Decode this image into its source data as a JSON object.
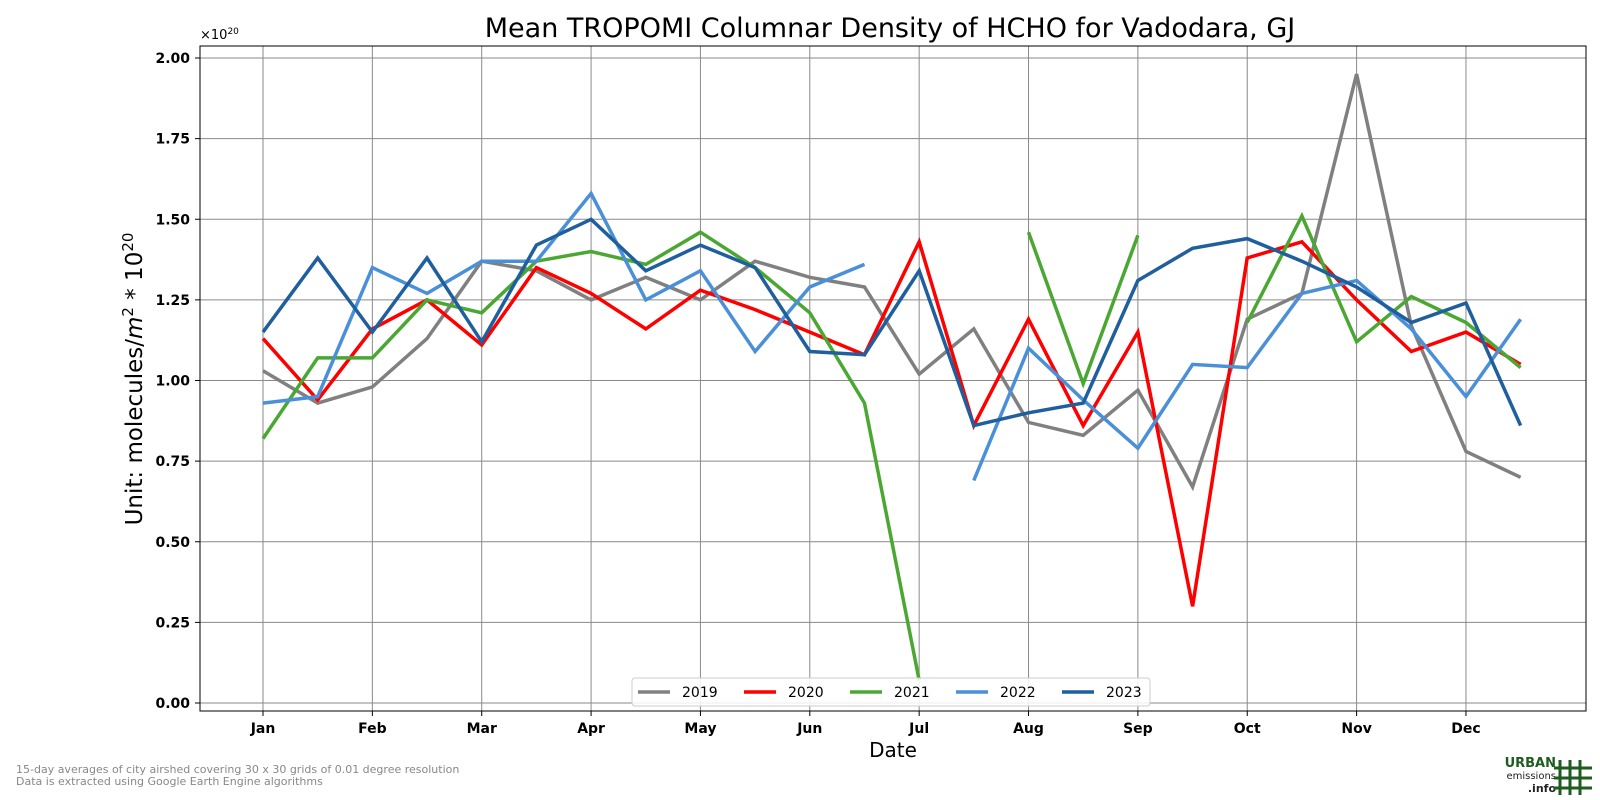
{
  "chart_data": {
    "type": "line",
    "title": "Mean TROPOMI Columnar Density of HCHO for Vadodara, GJ",
    "xlabel": "Date",
    "ylabel": "Unit: molecules/m² * 10²⁰",
    "ylabel_parts": {
      "prefix": "Unit: molecules/",
      "m": "m",
      "two": "2",
      "mid": " * 10",
      "exp": "20"
    },
    "y_multiplier": "×10",
    "y_multiplier_exp": "20",
    "ylim": [
      0,
      2.0
    ],
    "yticks": [
      "0.00",
      "0.25",
      "0.50",
      "0.75",
      "1.00",
      "1.25",
      "1.50",
      "1.75",
      "2.00"
    ],
    "x_tick_labels": [
      "Jan",
      "Feb",
      "Mar",
      "Apr",
      "May",
      "Jun",
      "Jul",
      "Aug",
      "Sep",
      "Oct",
      "Nov",
      "Dec"
    ],
    "x_periods": [
      "Jan",
      "Jan-15",
      "Feb",
      "Feb-15",
      "Mar",
      "Mar-15",
      "Apr",
      "Apr-15",
      "May",
      "May-15",
      "Jun",
      "Jun-15",
      "Jul",
      "Jul-15",
      "Aug",
      "Aug-15",
      "Sep",
      "Sep-15",
      "Oct",
      "Oct-15",
      "Nov",
      "Nov-15",
      "Dec",
      "Dec-15"
    ],
    "grid": true,
    "legend_position": "bottom-center",
    "series": [
      {
        "name": "2019",
        "color": "#808080",
        "values": [
          1.03,
          0.93,
          0.98,
          1.13,
          1.37,
          1.34,
          1.25,
          1.32,
          1.25,
          1.37,
          1.32,
          1.29,
          1.02,
          1.16,
          0.87,
          0.83,
          0.97,
          0.67,
          1.19,
          1.27,
          1.95,
          1.17,
          0.78,
          0.7
        ]
      },
      {
        "name": "2020",
        "color": "#ff0000",
        "values": [
          1.13,
          0.94,
          1.16,
          1.25,
          1.11,
          1.35,
          1.27,
          1.16,
          1.28,
          1.22,
          1.15,
          1.08,
          1.43,
          0.86,
          1.19,
          0.86,
          1.15,
          0.3,
          1.38,
          1.43,
          1.25,
          1.09,
          1.15,
          1.05
        ]
      },
      {
        "name": "2021",
        "color": "#4aa832",
        "values": [
          0.82,
          1.07,
          1.07,
          1.25,
          1.21,
          1.37,
          1.4,
          1.36,
          1.46,
          1.35,
          1.21,
          0.93,
          0.07,
          null,
          1.46,
          0.99,
          1.45,
          null,
          1.18,
          1.51,
          1.12,
          1.26,
          1.18,
          1.04
        ]
      },
      {
        "name": "2022",
        "color": "#4a90d9",
        "values": [
          0.93,
          0.95,
          1.35,
          1.27,
          1.37,
          1.37,
          1.58,
          1.25,
          1.34,
          1.09,
          1.29,
          1.36,
          null,
          0.69,
          1.1,
          0.94,
          0.79,
          1.05,
          1.04,
          1.27,
          1.31,
          1.16,
          0.95,
          1.19
        ]
      },
      {
        "name": "2023",
        "color": "#1f5f9e",
        "values": [
          1.15,
          1.38,
          1.15,
          1.38,
          1.12,
          1.42,
          1.5,
          1.34,
          1.42,
          1.35,
          1.09,
          1.08,
          1.34,
          0.86,
          0.9,
          0.93,
          1.31,
          1.41,
          1.44,
          1.37,
          1.29,
          1.18,
          1.24,
          0.86
        ]
      }
    ]
  },
  "footnotes": [
    "15-day averages of city airshed covering 30 x 30 grids of 0.01 degree resolution",
    "Data is extracted using Google Earth Engine algorithms"
  ],
  "logo": {
    "line1": "URBAN",
    "line2": "emissions",
    "line3": ".info",
    "color": "#1f5c1f"
  }
}
